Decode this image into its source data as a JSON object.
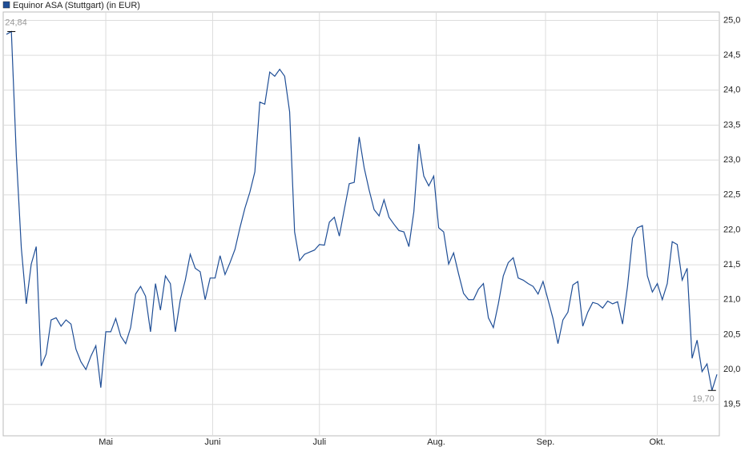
{
  "chart_data": {
    "type": "line",
    "title": "Equinor ASA (Stuttgart) (in EUR)",
    "series": [
      {
        "name": "Equinor ASA (Stuttgart) (in EUR)",
        "color": "#1f4e96",
        "values": [
          24.8,
          24.84,
          23.06,
          21.74,
          20.94,
          21.51,
          21.76,
          20.05,
          20.22,
          20.71,
          20.74,
          20.62,
          20.71,
          20.65,
          20.29,
          20.11,
          20.0,
          20.19,
          20.34,
          19.74,
          20.54,
          20.54,
          20.73,
          20.48,
          20.37,
          20.6,
          21.08,
          21.19,
          21.05,
          20.54,
          21.23,
          20.85,
          21.34,
          21.23,
          20.54,
          21.0,
          21.28,
          21.65,
          21.45,
          21.4,
          21.0,
          21.31,
          21.31,
          21.63,
          21.36,
          21.53,
          21.72,
          22.03,
          22.31,
          22.54,
          22.83,
          23.83,
          23.8,
          24.26,
          24.2,
          24.3,
          24.2,
          23.69,
          21.97,
          21.56,
          21.65,
          21.68,
          21.71,
          21.79,
          21.78,
          22.11,
          22.18,
          21.91,
          22.29,
          22.66,
          22.68,
          23.33,
          22.89,
          22.57,
          22.29,
          22.2,
          22.43,
          22.18,
          22.08,
          21.99,
          21.97,
          21.76,
          22.26,
          23.23,
          22.77,
          22.63,
          22.77,
          22.03,
          21.97,
          21.51,
          21.67,
          21.37,
          21.09,
          21.0,
          21.0,
          21.15,
          21.23,
          20.74,
          20.6,
          20.94,
          21.34,
          21.53,
          21.6,
          21.31,
          21.28,
          21.23,
          21.19,
          21.08,
          21.26,
          21.0,
          20.73,
          20.37,
          20.71,
          20.82,
          21.21,
          21.26,
          20.62,
          20.82,
          20.96,
          20.94,
          20.88,
          20.98,
          20.94,
          20.97,
          20.65,
          21.19,
          21.88,
          22.03,
          22.06,
          21.34,
          21.11,
          21.23,
          21.0,
          21.23,
          21.83,
          21.79,
          21.28,
          21.45,
          20.16,
          20.42,
          19.97,
          20.08,
          19.7,
          19.93
        ]
      }
    ],
    "max_label": "24,84",
    "min_label": "19,70",
    "ylim": [
      19.05,
      25.12
    ],
    "yticks": [
      {
        "value": 19.5,
        "label": "19,5"
      },
      {
        "value": 20,
        "label": "20,0"
      },
      {
        "value": 20.5,
        "label": "20,5"
      },
      {
        "value": 21,
        "label": "21,0"
      },
      {
        "value": 21.5,
        "label": "21,5"
      },
      {
        "value": 22,
        "label": "22,0"
      },
      {
        "value": 22.5,
        "label": "22,5"
      },
      {
        "value": 23,
        "label": "23,0"
      },
      {
        "value": 23.5,
        "label": "23,5"
      },
      {
        "value": 24,
        "label": "24,0"
      },
      {
        "value": 24.5,
        "label": "24,5"
      },
      {
        "value": 25,
        "label": "25,0"
      }
    ],
    "xticks": [
      {
        "value": 20,
        "label": "Mai"
      },
      {
        "value": 41.5,
        "label": "Juni"
      },
      {
        "value": 63,
        "label": "Juli"
      },
      {
        "value": 86.5,
        "label": "Aug."
      },
      {
        "value": 108.5,
        "label": "Sep."
      },
      {
        "value": 131,
        "label": "Okt."
      }
    ],
    "grid": true
  }
}
